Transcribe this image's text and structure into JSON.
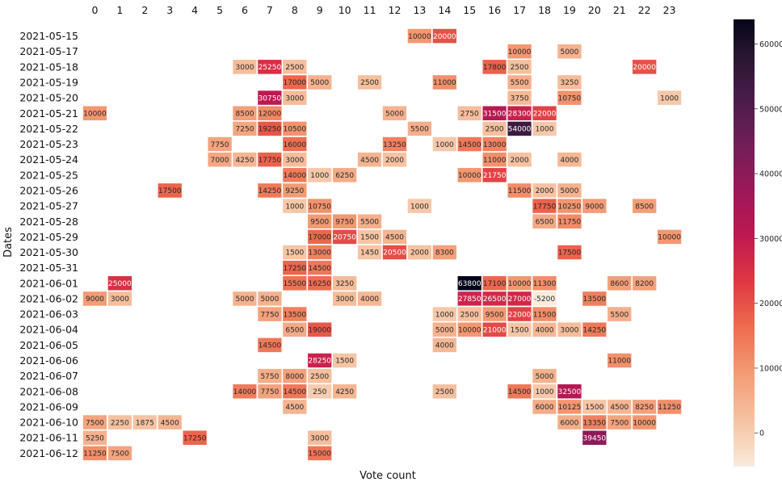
{
  "chart_data": {
    "type": "heatmap",
    "xlabel": "Vote count",
    "ylabel": "Dates",
    "x_categories": [
      "0",
      "1",
      "2",
      "3",
      "4",
      "5",
      "6",
      "7",
      "8",
      "9",
      "10",
      "11",
      "12",
      "13",
      "14",
      "15",
      "16",
      "17",
      "18",
      "19",
      "20",
      "21",
      "22",
      "23"
    ],
    "y_categories": [
      "2021-05-15",
      "2021-05-17",
      "2021-05-18",
      "2021-05-19",
      "2021-05-20",
      "2021-05-21",
      "2021-05-22",
      "2021-05-23",
      "2021-05-24",
      "2021-05-25",
      "2021-05-26",
      "2021-05-27",
      "2021-05-28",
      "2021-05-29",
      "2021-05-30",
      "2021-05-31",
      "2021-06-01",
      "2021-06-02",
      "2021-06-03",
      "2021-06-04",
      "2021-06-05",
      "2021-06-06",
      "2021-06-07",
      "2021-06-08",
      "2021-06-09",
      "2021-06-10",
      "2021-06-11",
      "2021-06-12"
    ],
    "cells": [
      {
        "y": "2021-05-15",
        "x": "13",
        "v": 10000
      },
      {
        "y": "2021-05-15",
        "x": "14",
        "v": 20000
      },
      {
        "y": "2021-05-17",
        "x": "17",
        "v": 10000
      },
      {
        "y": "2021-05-17",
        "x": "19",
        "v": 5000
      },
      {
        "y": "2021-05-18",
        "x": "6",
        "v": 3000
      },
      {
        "y": "2021-05-18",
        "x": "7",
        "v": 25250
      },
      {
        "y": "2021-05-18",
        "x": "8",
        "v": 2500
      },
      {
        "y": "2021-05-18",
        "x": "16",
        "v": 17800
      },
      {
        "y": "2021-05-18",
        "x": "17",
        "v": 2500
      },
      {
        "y": "2021-05-18",
        "x": "22",
        "v": 20000
      },
      {
        "y": "2021-05-19",
        "x": "8",
        "v": 17000
      },
      {
        "y": "2021-05-19",
        "x": "9",
        "v": 5000
      },
      {
        "y": "2021-05-19",
        "x": "11",
        "v": 2500
      },
      {
        "y": "2021-05-19",
        "x": "14",
        "v": 11000
      },
      {
        "y": "2021-05-19",
        "x": "17",
        "v": 5500
      },
      {
        "y": "2021-05-19",
        "x": "19",
        "v": 3250
      },
      {
        "y": "2021-05-20",
        "x": "7",
        "v": 30750
      },
      {
        "y": "2021-05-20",
        "x": "8",
        "v": 3000
      },
      {
        "y": "2021-05-20",
        "x": "17",
        "v": 3750
      },
      {
        "y": "2021-05-20",
        "x": "19",
        "v": 10750
      },
      {
        "y": "2021-05-20",
        "x": "23",
        "v": 1000
      },
      {
        "y": "2021-05-21",
        "x": "0",
        "v": 10000
      },
      {
        "y": "2021-05-21",
        "x": "6",
        "v": 8500
      },
      {
        "y": "2021-05-21",
        "x": "7",
        "v": 12000
      },
      {
        "y": "2021-05-21",
        "x": "12",
        "v": 5000
      },
      {
        "y": "2021-05-21",
        "x": "15",
        "v": 2750
      },
      {
        "y": "2021-05-21",
        "x": "16",
        "v": 31500
      },
      {
        "y": "2021-05-21",
        "x": "17",
        "v": 28300
      },
      {
        "y": "2021-05-21",
        "x": "18",
        "v": 22000
      },
      {
        "y": "2021-05-22",
        "x": "6",
        "v": 7250
      },
      {
        "y": "2021-05-22",
        "x": "7",
        "v": 19250
      },
      {
        "y": "2021-05-22",
        "x": "8",
        "v": 10500
      },
      {
        "y": "2021-05-22",
        "x": "13",
        "v": 5500
      },
      {
        "y": "2021-05-22",
        "x": "16",
        "v": 2500
      },
      {
        "y": "2021-05-22",
        "x": "17",
        "v": 54000
      },
      {
        "y": "2021-05-22",
        "x": "18",
        "v": 1000
      },
      {
        "y": "2021-05-23",
        "x": "5",
        "v": 7750
      },
      {
        "y": "2021-05-23",
        "x": "8",
        "v": 16000
      },
      {
        "y": "2021-05-23",
        "x": "12",
        "v": 13250
      },
      {
        "y": "2021-05-23",
        "x": "14",
        "v": 1000
      },
      {
        "y": "2021-05-23",
        "x": "15",
        "v": 14500
      },
      {
        "y": "2021-05-23",
        "x": "16",
        "v": 13000
      },
      {
        "y": "2021-05-24",
        "x": "5",
        "v": 7000
      },
      {
        "y": "2021-05-24",
        "x": "6",
        "v": 4250
      },
      {
        "y": "2021-05-24",
        "x": "7",
        "v": 17750
      },
      {
        "y": "2021-05-24",
        "x": "8",
        "v": 3000
      },
      {
        "y": "2021-05-24",
        "x": "11",
        "v": 4500
      },
      {
        "y": "2021-05-24",
        "x": "12",
        "v": 2000
      },
      {
        "y": "2021-05-24",
        "x": "16",
        "v": 11000
      },
      {
        "y": "2021-05-24",
        "x": "17",
        "v": 2000
      },
      {
        "y": "2021-05-24",
        "x": "19",
        "v": 4000
      },
      {
        "y": "2021-05-25",
        "x": "8",
        "v": 14000
      },
      {
        "y": "2021-05-25",
        "x": "9",
        "v": 1000
      },
      {
        "y": "2021-05-25",
        "x": "10",
        "v": 6250
      },
      {
        "y": "2021-05-25",
        "x": "15",
        "v": 10000
      },
      {
        "y": "2021-05-25",
        "x": "16",
        "v": 21750
      },
      {
        "y": "2021-05-26",
        "x": "3",
        "v": 17500
      },
      {
        "y": "2021-05-26",
        "x": "7",
        "v": 14250
      },
      {
        "y": "2021-05-26",
        "x": "8",
        "v": 9250
      },
      {
        "y": "2021-05-26",
        "x": "17",
        "v": 11500
      },
      {
        "y": "2021-05-26",
        "x": "18",
        "v": 2000
      },
      {
        "y": "2021-05-26",
        "x": "19",
        "v": 5000
      },
      {
        "y": "2021-05-27",
        "x": "8",
        "v": 1000
      },
      {
        "y": "2021-05-27",
        "x": "9",
        "v": 10750
      },
      {
        "y": "2021-05-27",
        "x": "13",
        "v": 1000
      },
      {
        "y": "2021-05-27",
        "x": "18",
        "v": 17750
      },
      {
        "y": "2021-05-27",
        "x": "19",
        "v": 10250
      },
      {
        "y": "2021-05-27",
        "x": "20",
        "v": 9000
      },
      {
        "y": "2021-05-27",
        "x": "22",
        "v": 8500
      },
      {
        "y": "2021-05-28",
        "x": "9",
        "v": 9500
      },
      {
        "y": "2021-05-28",
        "x": "10",
        "v": 9750
      },
      {
        "y": "2021-05-28",
        "x": "11",
        "v": 5500
      },
      {
        "y": "2021-05-28",
        "x": "18",
        "v": 6500
      },
      {
        "y": "2021-05-28",
        "x": "19",
        "v": 11750
      },
      {
        "y": "2021-05-29",
        "x": "9",
        "v": 17000
      },
      {
        "y": "2021-05-29",
        "x": "10",
        "v": 20750
      },
      {
        "y": "2021-05-29",
        "x": "11",
        "v": 1500
      },
      {
        "y": "2021-05-29",
        "x": "12",
        "v": 4500
      },
      {
        "y": "2021-05-29",
        "x": "23",
        "v": 10000
      },
      {
        "y": "2021-05-30",
        "x": "8",
        "v": 1500
      },
      {
        "y": "2021-05-30",
        "x": "9",
        "v": 13000
      },
      {
        "y": "2021-05-30",
        "x": "11",
        "v": 1450
      },
      {
        "y": "2021-05-30",
        "x": "12",
        "v": 20500
      },
      {
        "y": "2021-05-30",
        "x": "13",
        "v": 2000
      },
      {
        "y": "2021-05-30",
        "x": "14",
        "v": 8300
      },
      {
        "y": "2021-05-30",
        "x": "19",
        "v": 17500
      },
      {
        "y": "2021-05-31",
        "x": "8",
        "v": 17250
      },
      {
        "y": "2021-05-31",
        "x": "9",
        "v": 14500
      },
      {
        "y": "2021-06-01",
        "x": "1",
        "v": 25000
      },
      {
        "y": "2021-06-01",
        "x": "8",
        "v": 15500
      },
      {
        "y": "2021-06-01",
        "x": "9",
        "v": 16250
      },
      {
        "y": "2021-06-01",
        "x": "10",
        "v": 3250
      },
      {
        "y": "2021-06-01",
        "x": "15",
        "v": 63800
      },
      {
        "y": "2021-06-01",
        "x": "16",
        "v": 17100
      },
      {
        "y": "2021-06-01",
        "x": "17",
        "v": 10000
      },
      {
        "y": "2021-06-01",
        "x": "18",
        "v": 11300
      },
      {
        "y": "2021-06-01",
        "x": "21",
        "v": 8600
      },
      {
        "y": "2021-06-01",
        "x": "22",
        "v": 8200
      },
      {
        "y": "2021-06-02",
        "x": "0",
        "v": 9000
      },
      {
        "y": "2021-06-02",
        "x": "1",
        "v": 3000
      },
      {
        "y": "2021-06-02",
        "x": "6",
        "v": 5000
      },
      {
        "y": "2021-06-02",
        "x": "7",
        "v": 5000
      },
      {
        "y": "2021-06-02",
        "x": "10",
        "v": 3000
      },
      {
        "y": "2021-06-02",
        "x": "11",
        "v": 4000
      },
      {
        "y": "2021-06-02",
        "x": "15",
        "v": 27850
      },
      {
        "y": "2021-06-02",
        "x": "16",
        "v": 26500
      },
      {
        "y": "2021-06-02",
        "x": "17",
        "v": 27000
      },
      {
        "y": "2021-06-02",
        "x": "18",
        "v": -5200
      },
      {
        "y": "2021-06-02",
        "x": "20",
        "v": 13500
      },
      {
        "y": "2021-06-03",
        "x": "7",
        "v": 7750
      },
      {
        "y": "2021-06-03",
        "x": "8",
        "v": 13500
      },
      {
        "y": "2021-06-03",
        "x": "14",
        "v": 1000
      },
      {
        "y": "2021-06-03",
        "x": "15",
        "v": 2500
      },
      {
        "y": "2021-06-03",
        "x": "16",
        "v": 9500
      },
      {
        "y": "2021-06-03",
        "x": "17",
        "v": 22000
      },
      {
        "y": "2021-06-03",
        "x": "18",
        "v": 11500
      },
      {
        "y": "2021-06-03",
        "x": "21",
        "v": 5500
      },
      {
        "y": "2021-06-04",
        "x": "8",
        "v": 6500
      },
      {
        "y": "2021-06-04",
        "x": "9",
        "v": 19000
      },
      {
        "y": "2021-06-04",
        "x": "14",
        "v": 5000
      },
      {
        "y": "2021-06-04",
        "x": "15",
        "v": 10000
      },
      {
        "y": "2021-06-04",
        "x": "16",
        "v": 21000
      },
      {
        "y": "2021-06-04",
        "x": "17",
        "v": 1500
      },
      {
        "y": "2021-06-04",
        "x": "18",
        "v": 4000
      },
      {
        "y": "2021-06-04",
        "x": "19",
        "v": 3000
      },
      {
        "y": "2021-06-04",
        "x": "20",
        "v": 14250
      },
      {
        "y": "2021-06-05",
        "x": "7",
        "v": 14500
      },
      {
        "y": "2021-06-05",
        "x": "14",
        "v": 4000
      },
      {
        "y": "2021-06-06",
        "x": "9",
        "v": 28250
      },
      {
        "y": "2021-06-06",
        "x": "10",
        "v": 1500
      },
      {
        "y": "2021-06-06",
        "x": "21",
        "v": 11000
      },
      {
        "y": "2021-06-07",
        "x": "7",
        "v": 5750
      },
      {
        "y": "2021-06-07",
        "x": "8",
        "v": 8000
      },
      {
        "y": "2021-06-07",
        "x": "9",
        "v": 2500
      },
      {
        "y": "2021-06-07",
        "x": "18",
        "v": 5000
      },
      {
        "y": "2021-06-08",
        "x": "6",
        "v": 14000
      },
      {
        "y": "2021-06-08",
        "x": "7",
        "v": 7750
      },
      {
        "y": "2021-06-08",
        "x": "8",
        "v": 14500
      },
      {
        "y": "2021-06-08",
        "x": "9",
        "v": 250
      },
      {
        "y": "2021-06-08",
        "x": "10",
        "v": 4250
      },
      {
        "y": "2021-06-08",
        "x": "14",
        "v": 2500
      },
      {
        "y": "2021-06-08",
        "x": "17",
        "v": 14500
      },
      {
        "y": "2021-06-08",
        "x": "18",
        "v": 1000
      },
      {
        "y": "2021-06-08",
        "x": "19",
        "v": 32500
      },
      {
        "y": "2021-06-09",
        "x": "8",
        "v": 4500
      },
      {
        "y": "2021-06-09",
        "x": "18",
        "v": 6000
      },
      {
        "y": "2021-06-09",
        "x": "19",
        "v": 10125
      },
      {
        "y": "2021-06-09",
        "x": "20",
        "v": 1500
      },
      {
        "y": "2021-06-09",
        "x": "21",
        "v": 4500
      },
      {
        "y": "2021-06-09",
        "x": "22",
        "v": 8250
      },
      {
        "y": "2021-06-09",
        "x": "23",
        "v": 11250
      },
      {
        "y": "2021-06-10",
        "x": "0",
        "v": 7500
      },
      {
        "y": "2021-06-10",
        "x": "1",
        "v": 2250
      },
      {
        "y": "2021-06-10",
        "x": "2",
        "v": 1875
      },
      {
        "y": "2021-06-10",
        "x": "3",
        "v": 4500
      },
      {
        "y": "2021-06-10",
        "x": "19",
        "v": 6000
      },
      {
        "y": "2021-06-10",
        "x": "20",
        "v": 13350
      },
      {
        "y": "2021-06-10",
        "x": "21",
        "v": 7500
      },
      {
        "y": "2021-06-10",
        "x": "22",
        "v": 10000
      },
      {
        "y": "2021-06-11",
        "x": "0",
        "v": 5250
      },
      {
        "y": "2021-06-11",
        "x": "4",
        "v": 17250
      },
      {
        "y": "2021-06-11",
        "x": "9",
        "v": 3000
      },
      {
        "y": "2021-06-11",
        "x": "20",
        "v": 39450
      },
      {
        "y": "2021-06-12",
        "x": "0",
        "v": 11250
      },
      {
        "y": "2021-06-12",
        "x": "1",
        "v": 7500
      },
      {
        "y": "2021-06-12",
        "x": "9",
        "v": 15000
      }
    ],
    "value_range": [
      -5200,
      63800
    ],
    "colorbar_ticks": [
      0,
      10000,
      20000,
      30000,
      40000,
      50000,
      60000
    ],
    "colormap": "rocket_r",
    "grid": false,
    "legend": "colorbar-right"
  }
}
